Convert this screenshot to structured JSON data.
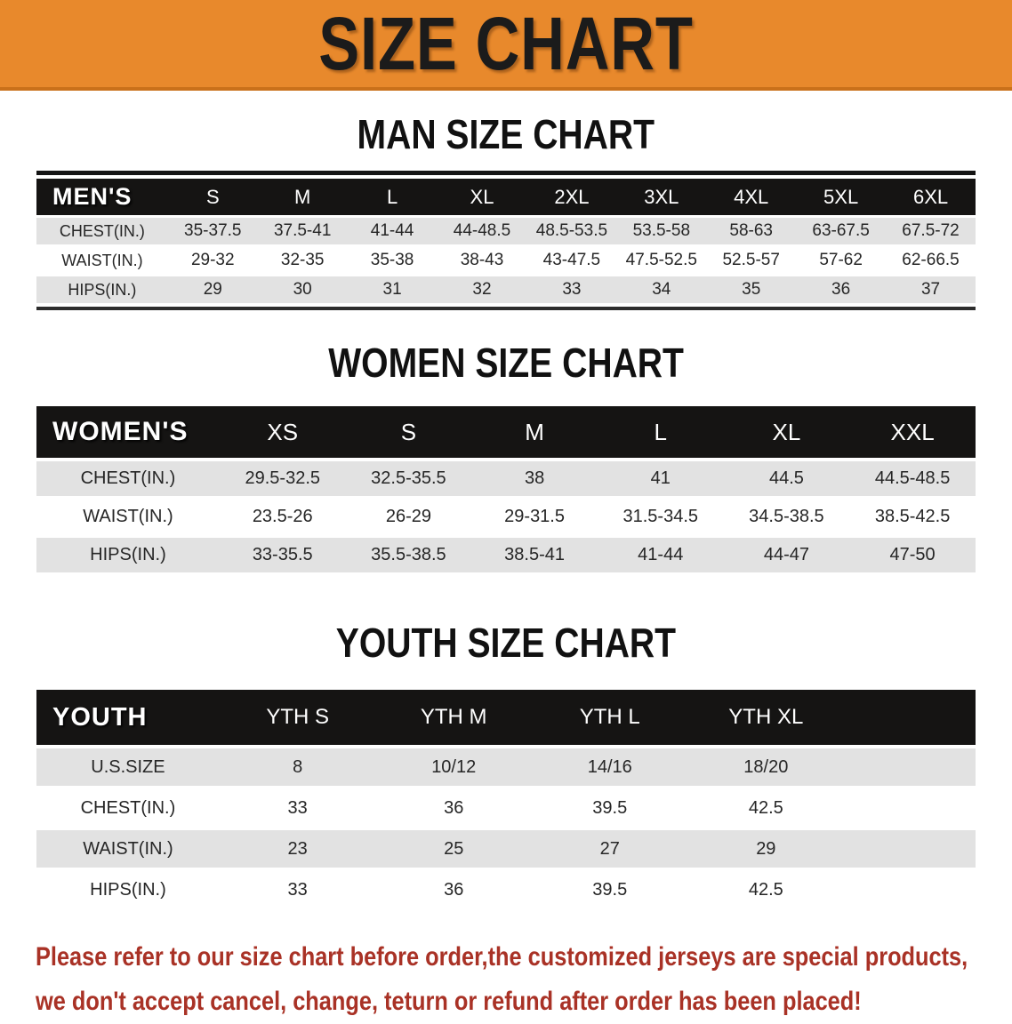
{
  "banner": {
    "title": "SIZE CHART",
    "bg_color": "#E8892C",
    "text_color": "#1B1B1B"
  },
  "sections": {
    "man_title": "MAN SIZE CHART",
    "women_title": "WOMEN SIZE CHART",
    "youth_title": "YOUTH SIZE CHART"
  },
  "tables": {
    "men": {
      "name_label": "MEN'S",
      "columns": [
        "S",
        "M",
        "L",
        "XL",
        "2XL",
        "3XL",
        "4XL",
        "5XL",
        "6XL"
      ],
      "rows": [
        {
          "label": "CHEST(IN.)",
          "values": [
            "35-37.5",
            "37.5-41",
            "41-44",
            "44-48.5",
            "48.5-53.5",
            "53.5-58",
            "58-63",
            "63-67.5",
            "67.5-72"
          ]
        },
        {
          "label": "WAIST(IN.)",
          "values": [
            "29-32",
            "32-35",
            "35-38",
            "38-43",
            "43-47.5",
            "47.5-52.5",
            "52.5-57",
            "57-62",
            "62-66.5"
          ]
        },
        {
          "label": "HIPS(IN.)",
          "values": [
            "29",
            "30",
            "31",
            "32",
            "33",
            "34",
            "35",
            "36",
            "37"
          ]
        }
      ]
    },
    "women": {
      "name_label": "WOMEN'S",
      "columns": [
        "XS",
        "S",
        "M",
        "L",
        "XL",
        "XXL"
      ],
      "rows": [
        {
          "label": "CHEST(IN.)",
          "values": [
            "29.5-32.5",
            "32.5-35.5",
            "38",
            "41",
            "44.5",
            "44.5-48.5"
          ]
        },
        {
          "label": "WAIST(IN.)",
          "values": [
            "23.5-26",
            "26-29",
            "29-31.5",
            "31.5-34.5",
            "34.5-38.5",
            "38.5-42.5"
          ]
        },
        {
          "label": "HIPS(IN.)",
          "values": [
            "33-35.5",
            "35.5-38.5",
            "38.5-41",
            "41-44",
            "44-47",
            "47-50"
          ]
        }
      ]
    },
    "youth": {
      "name_label": "YOUTH",
      "columns": [
        "YTH S",
        "YTH M",
        "YTH L",
        "YTH XL"
      ],
      "rows": [
        {
          "label": "U.S.SIZE",
          "values": [
            "8",
            "10/12",
            "14/16",
            "18/20"
          ]
        },
        {
          "label": "CHEST(IN.)",
          "values": [
            "33",
            "36",
            "39.5",
            "42.5"
          ]
        },
        {
          "label": "WAIST(IN.)",
          "values": [
            "23",
            "25",
            "27",
            "29"
          ]
        },
        {
          "label": "HIPS(IN.)",
          "values": [
            "33",
            "36",
            "39.5",
            "42.5"
          ]
        }
      ]
    }
  },
  "footer": {
    "line1": "Please refer to our size chart before order,the customized jerseys are special products,",
    "line2": "we don't accept cancel, change, teturn or refund after order has been placed!",
    "text_color": "#A93226"
  },
  "colors": {
    "banner_orange": "#E8892C",
    "header_black": "#151413",
    "row_gray": "#E2E2E2",
    "footer_red": "#A93226"
  }
}
